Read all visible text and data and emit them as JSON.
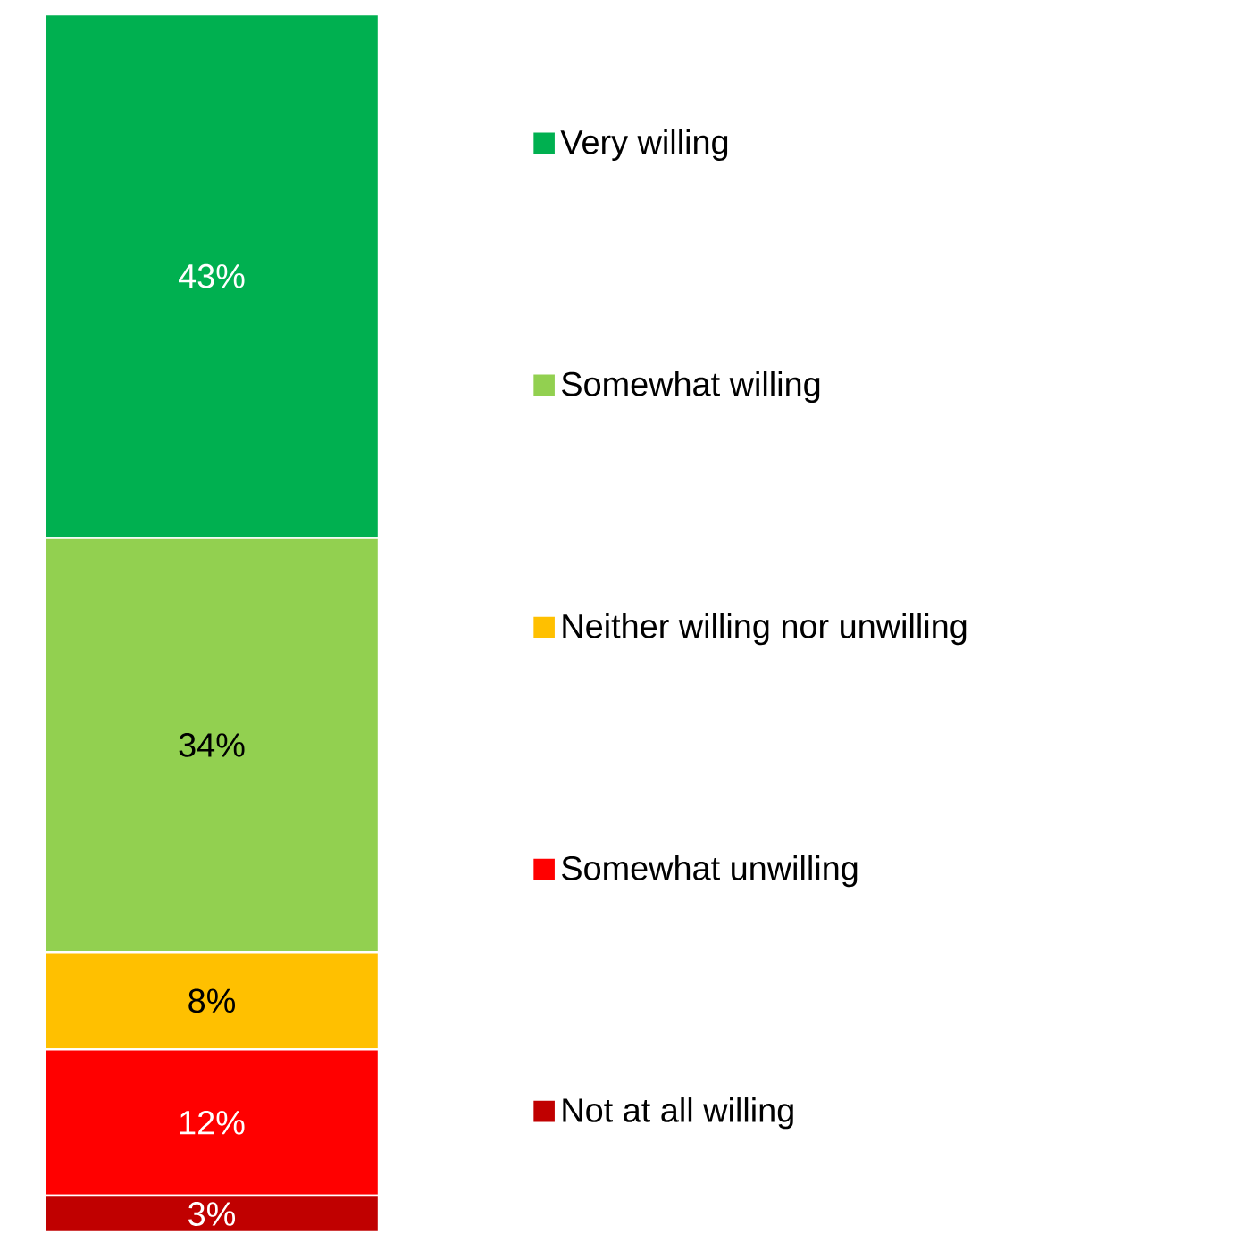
{
  "chart_data": {
    "type": "bar",
    "stacked": true,
    "categories": [
      null
    ],
    "legend": "right",
    "series": [
      {
        "name": "Not at all willing",
        "color": "#c00000",
        "values": [
          3
        ],
        "value_labels": [
          "3%"
        ]
      },
      {
        "name": "Somewhat unwilling",
        "color": "#ff0000",
        "values": [
          12
        ],
        "value_labels": [
          "12%"
        ]
      },
      {
        "name": "Neither willing nor unwilling",
        "color": "#ffc000",
        "values": [
          8
        ],
        "value_labels": [
          "8%"
        ]
      },
      {
        "name": "Somewhat willing",
        "color": "#92d050",
        "values": [
          34
        ],
        "value_labels": [
          "34%"
        ]
      },
      {
        "name": "Very willing",
        "color": "#00b050",
        "values": [
          43
        ],
        "value_labels": [
          "43%"
        ]
      }
    ]
  }
}
